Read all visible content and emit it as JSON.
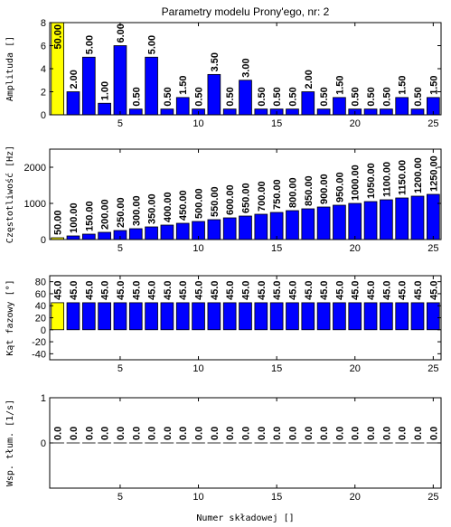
{
  "chart_data": [
    {
      "type": "bar",
      "title": "Parametry modelu Prony'ego, nr: 2",
      "ylabel": "Amplituda []",
      "x": [
        1,
        2,
        3,
        4,
        5,
        6,
        7,
        8,
        9,
        10,
        11,
        12,
        13,
        14,
        15,
        16,
        17,
        18,
        19,
        20,
        21,
        22,
        23,
        24,
        25
      ],
      "values": [
        50,
        2,
        5,
        1,
        6,
        0.5,
        5,
        0.5,
        1.5,
        0.5,
        3.5,
        0.5,
        3,
        0.5,
        0.5,
        0.5,
        2,
        0.5,
        1.5,
        0.5,
        0.5,
        0.5,
        1.5,
        0.5,
        1.5
      ],
      "value_labels": [
        "50.00",
        "2.00",
        "5.00",
        "1.00",
        "6.00",
        "0.50",
        "5.00",
        "0.50",
        "1.50",
        "0.50",
        "3.50",
        "0.50",
        "3.00",
        "0.50",
        "0.50",
        "0.50",
        "2.00",
        "0.50",
        "1.50",
        "0.50",
        "0.50",
        "0.50",
        "1.50",
        "0.50",
        "1.50"
      ],
      "colors": [
        "#ffff00",
        "#0000ff",
        "#0000ff",
        "#0000ff",
        "#0000ff",
        "#0000ff",
        "#0000ff",
        "#0000ff",
        "#0000ff",
        "#0000ff",
        "#0000ff",
        "#0000ff",
        "#0000ff",
        "#0000ff",
        "#0000ff",
        "#0000ff",
        "#0000ff",
        "#0000ff",
        "#0000ff",
        "#0000ff",
        "#0000ff",
        "#0000ff",
        "#0000ff",
        "#0000ff",
        "#0000ff"
      ],
      "xlim": [
        0.5,
        25.5
      ],
      "xticks": [
        5,
        10,
        15,
        20,
        25
      ],
      "ylim": [
        0,
        8
      ],
      "yticks": [
        0,
        2,
        4,
        6,
        8
      ]
    },
    {
      "type": "bar",
      "ylabel": "Częstotliwość [Hz]",
      "x": [
        1,
        2,
        3,
        4,
        5,
        6,
        7,
        8,
        9,
        10,
        11,
        12,
        13,
        14,
        15,
        16,
        17,
        18,
        19,
        20,
        21,
        22,
        23,
        24,
        25
      ],
      "values": [
        50,
        100,
        150,
        200,
        250,
        300,
        350,
        400,
        450,
        500,
        550,
        600,
        650,
        700,
        750,
        800,
        850,
        900,
        950,
        1000,
        1050,
        1100,
        1150,
        1200,
        1250
      ],
      "value_labels": [
        "50.00",
        "100.00",
        "150.00",
        "200.00",
        "250.00",
        "300.00",
        "350.00",
        "400.00",
        "450.00",
        "500.00",
        "550.00",
        "600.00",
        "650.00",
        "700.00",
        "750.00",
        "800.00",
        "850.00",
        "900.00",
        "950.00",
        "1000.00",
        "1050.00",
        "1100.00",
        "1150.00",
        "1200.00",
        "1250.00"
      ],
      "colors": [
        "#ffff00",
        "#0000ff",
        "#0000ff",
        "#0000ff",
        "#0000ff",
        "#0000ff",
        "#0000ff",
        "#0000ff",
        "#0000ff",
        "#0000ff",
        "#0000ff",
        "#0000ff",
        "#0000ff",
        "#0000ff",
        "#0000ff",
        "#0000ff",
        "#0000ff",
        "#0000ff",
        "#0000ff",
        "#0000ff",
        "#0000ff",
        "#0000ff",
        "#0000ff",
        "#0000ff",
        "#0000ff"
      ],
      "xlim": [
        0.5,
        25.5
      ],
      "xticks": [
        5,
        10,
        15,
        20,
        25
      ],
      "ylim": [
        0,
        2500
      ],
      "yticks": [
        0,
        1000,
        2000
      ]
    },
    {
      "type": "bar",
      "ylabel": "Kąt fazowy [°]",
      "x": [
        1,
        2,
        3,
        4,
        5,
        6,
        7,
        8,
        9,
        10,
        11,
        12,
        13,
        14,
        15,
        16,
        17,
        18,
        19,
        20,
        21,
        22,
        23,
        24,
        25
      ],
      "values": [
        45,
        45,
        45,
        45,
        45,
        45,
        45,
        45,
        45,
        45,
        45,
        45,
        45,
        45,
        45,
        45,
        45,
        45,
        45,
        45,
        45,
        45,
        45,
        45,
        45
      ],
      "value_labels": [
        "45.0",
        "45.0",
        "45.0",
        "45.0",
        "45.0",
        "45.0",
        "45.0",
        "45.0",
        "45.0",
        "45.0",
        "45.0",
        "45.0",
        "45.0",
        "45.0",
        "45.0",
        "45.0",
        "45.0",
        "45.0",
        "45.0",
        "45.0",
        "45.0",
        "45.0",
        "45.0",
        "45.0",
        "45.0"
      ],
      "colors": [
        "#ffff00",
        "#0000ff",
        "#0000ff",
        "#0000ff",
        "#0000ff",
        "#0000ff",
        "#0000ff",
        "#0000ff",
        "#0000ff",
        "#0000ff",
        "#0000ff",
        "#0000ff",
        "#0000ff",
        "#0000ff",
        "#0000ff",
        "#0000ff",
        "#0000ff",
        "#0000ff",
        "#0000ff",
        "#0000ff",
        "#0000ff",
        "#0000ff",
        "#0000ff",
        "#0000ff",
        "#0000ff"
      ],
      "xlim": [
        0.5,
        25.5
      ],
      "xticks": [
        5,
        10,
        15,
        20,
        25
      ],
      "ylim": [
        -50,
        90
      ],
      "yticks": [
        -40,
        -20,
        0,
        20,
        40,
        60,
        80
      ]
    },
    {
      "type": "bar",
      "ylabel": "Wsp. tłum. [1/s]",
      "xlabel": "Numer składowej []",
      "x": [
        1,
        2,
        3,
        4,
        5,
        6,
        7,
        8,
        9,
        10,
        11,
        12,
        13,
        14,
        15,
        16,
        17,
        18,
        19,
        20,
        21,
        22,
        23,
        24,
        25
      ],
      "values": [
        0,
        0,
        0,
        0,
        0,
        0,
        0,
        0,
        0,
        0,
        0,
        0,
        0,
        0,
        0,
        0,
        0,
        0,
        0,
        0,
        0,
        0,
        0,
        0,
        0
      ],
      "value_labels": [
        "0.0",
        "0.0",
        "0.0",
        "0.0",
        "0.0",
        "0.0",
        "0.0",
        "0.0",
        "0.0",
        "0.0",
        "0.0",
        "0.0",
        "0.0",
        "0.0",
        "0.0",
        "0.0",
        "0.0",
        "0.0",
        "0.0",
        "0.0",
        "0.0",
        "0.0",
        "0.0",
        "0.0",
        "0.0"
      ],
      "colors": [
        "#ffff00",
        "#0000ff",
        "#0000ff",
        "#0000ff",
        "#0000ff",
        "#0000ff",
        "#0000ff",
        "#0000ff",
        "#0000ff",
        "#0000ff",
        "#0000ff",
        "#0000ff",
        "#0000ff",
        "#0000ff",
        "#0000ff",
        "#0000ff",
        "#0000ff",
        "#0000ff",
        "#0000ff",
        "#0000ff",
        "#0000ff",
        "#0000ff",
        "#0000ff",
        "#0000ff",
        "#0000ff"
      ],
      "xlim": [
        0.5,
        25.5
      ],
      "xticks": [
        5,
        10,
        15,
        20,
        25
      ],
      "ylim": [
        -1,
        1
      ],
      "yticks": [
        0,
        1
      ]
    }
  ]
}
